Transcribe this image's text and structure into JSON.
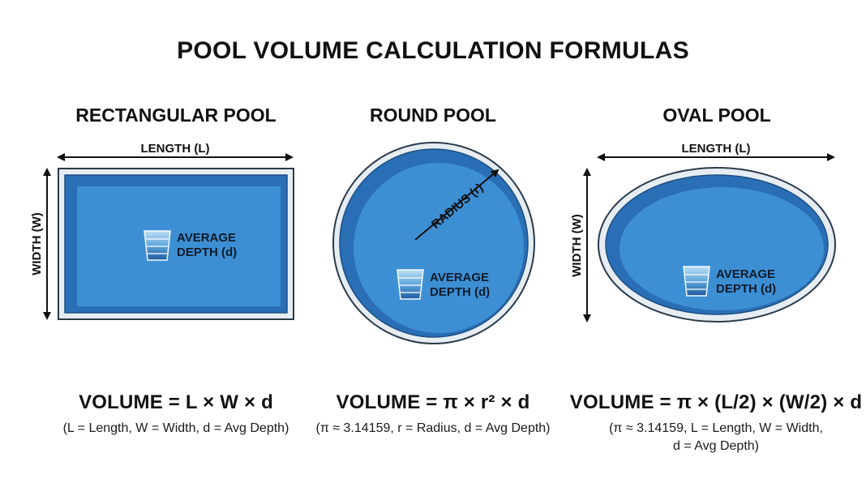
{
  "title": "POOL VOLUME CALCULATION FORMULAS",
  "colors": {
    "water": "#3d8fd4",
    "water_dark": "#2668ad",
    "rim": "#e6edf2",
    "outline": "#2a3a4a"
  },
  "pools": [
    {
      "name": "RECTANGULAR POOL",
      "length_label": "LENGTH (L)",
      "width_label": "WIDTH (W)",
      "depth_label_line1": "AVERAGE",
      "depth_label_line2": "DEPTH (d)",
      "formula": "VOLUME = L × W × d",
      "note_line1": "(L = Length, W = Width, d = Avg Depth)"
    },
    {
      "name": "ROUND POOL",
      "radius_label": "RADIUS (r)",
      "depth_label_line1": "AVERAGE",
      "depth_label_line2": "DEPTH (d)",
      "formula": "VOLUME = π × r² × d",
      "note_line1": "(π ≈ 3.14159, r = Radius, d = Avg Depth)"
    },
    {
      "name": "OVAL POOL",
      "length_label": "LENGTH (L)",
      "width_label": "WIDTH (W)",
      "depth_label_line1": "AVERAGE",
      "depth_label_line2": "DEPTH (d)",
      "formula": "VOLUME = π × (L/2) × (W/2) × d",
      "note_line1": "(π ≈ 3.14159, L = Length, W = Width,",
      "note_line2": "d = Avg Depth)"
    }
  ]
}
